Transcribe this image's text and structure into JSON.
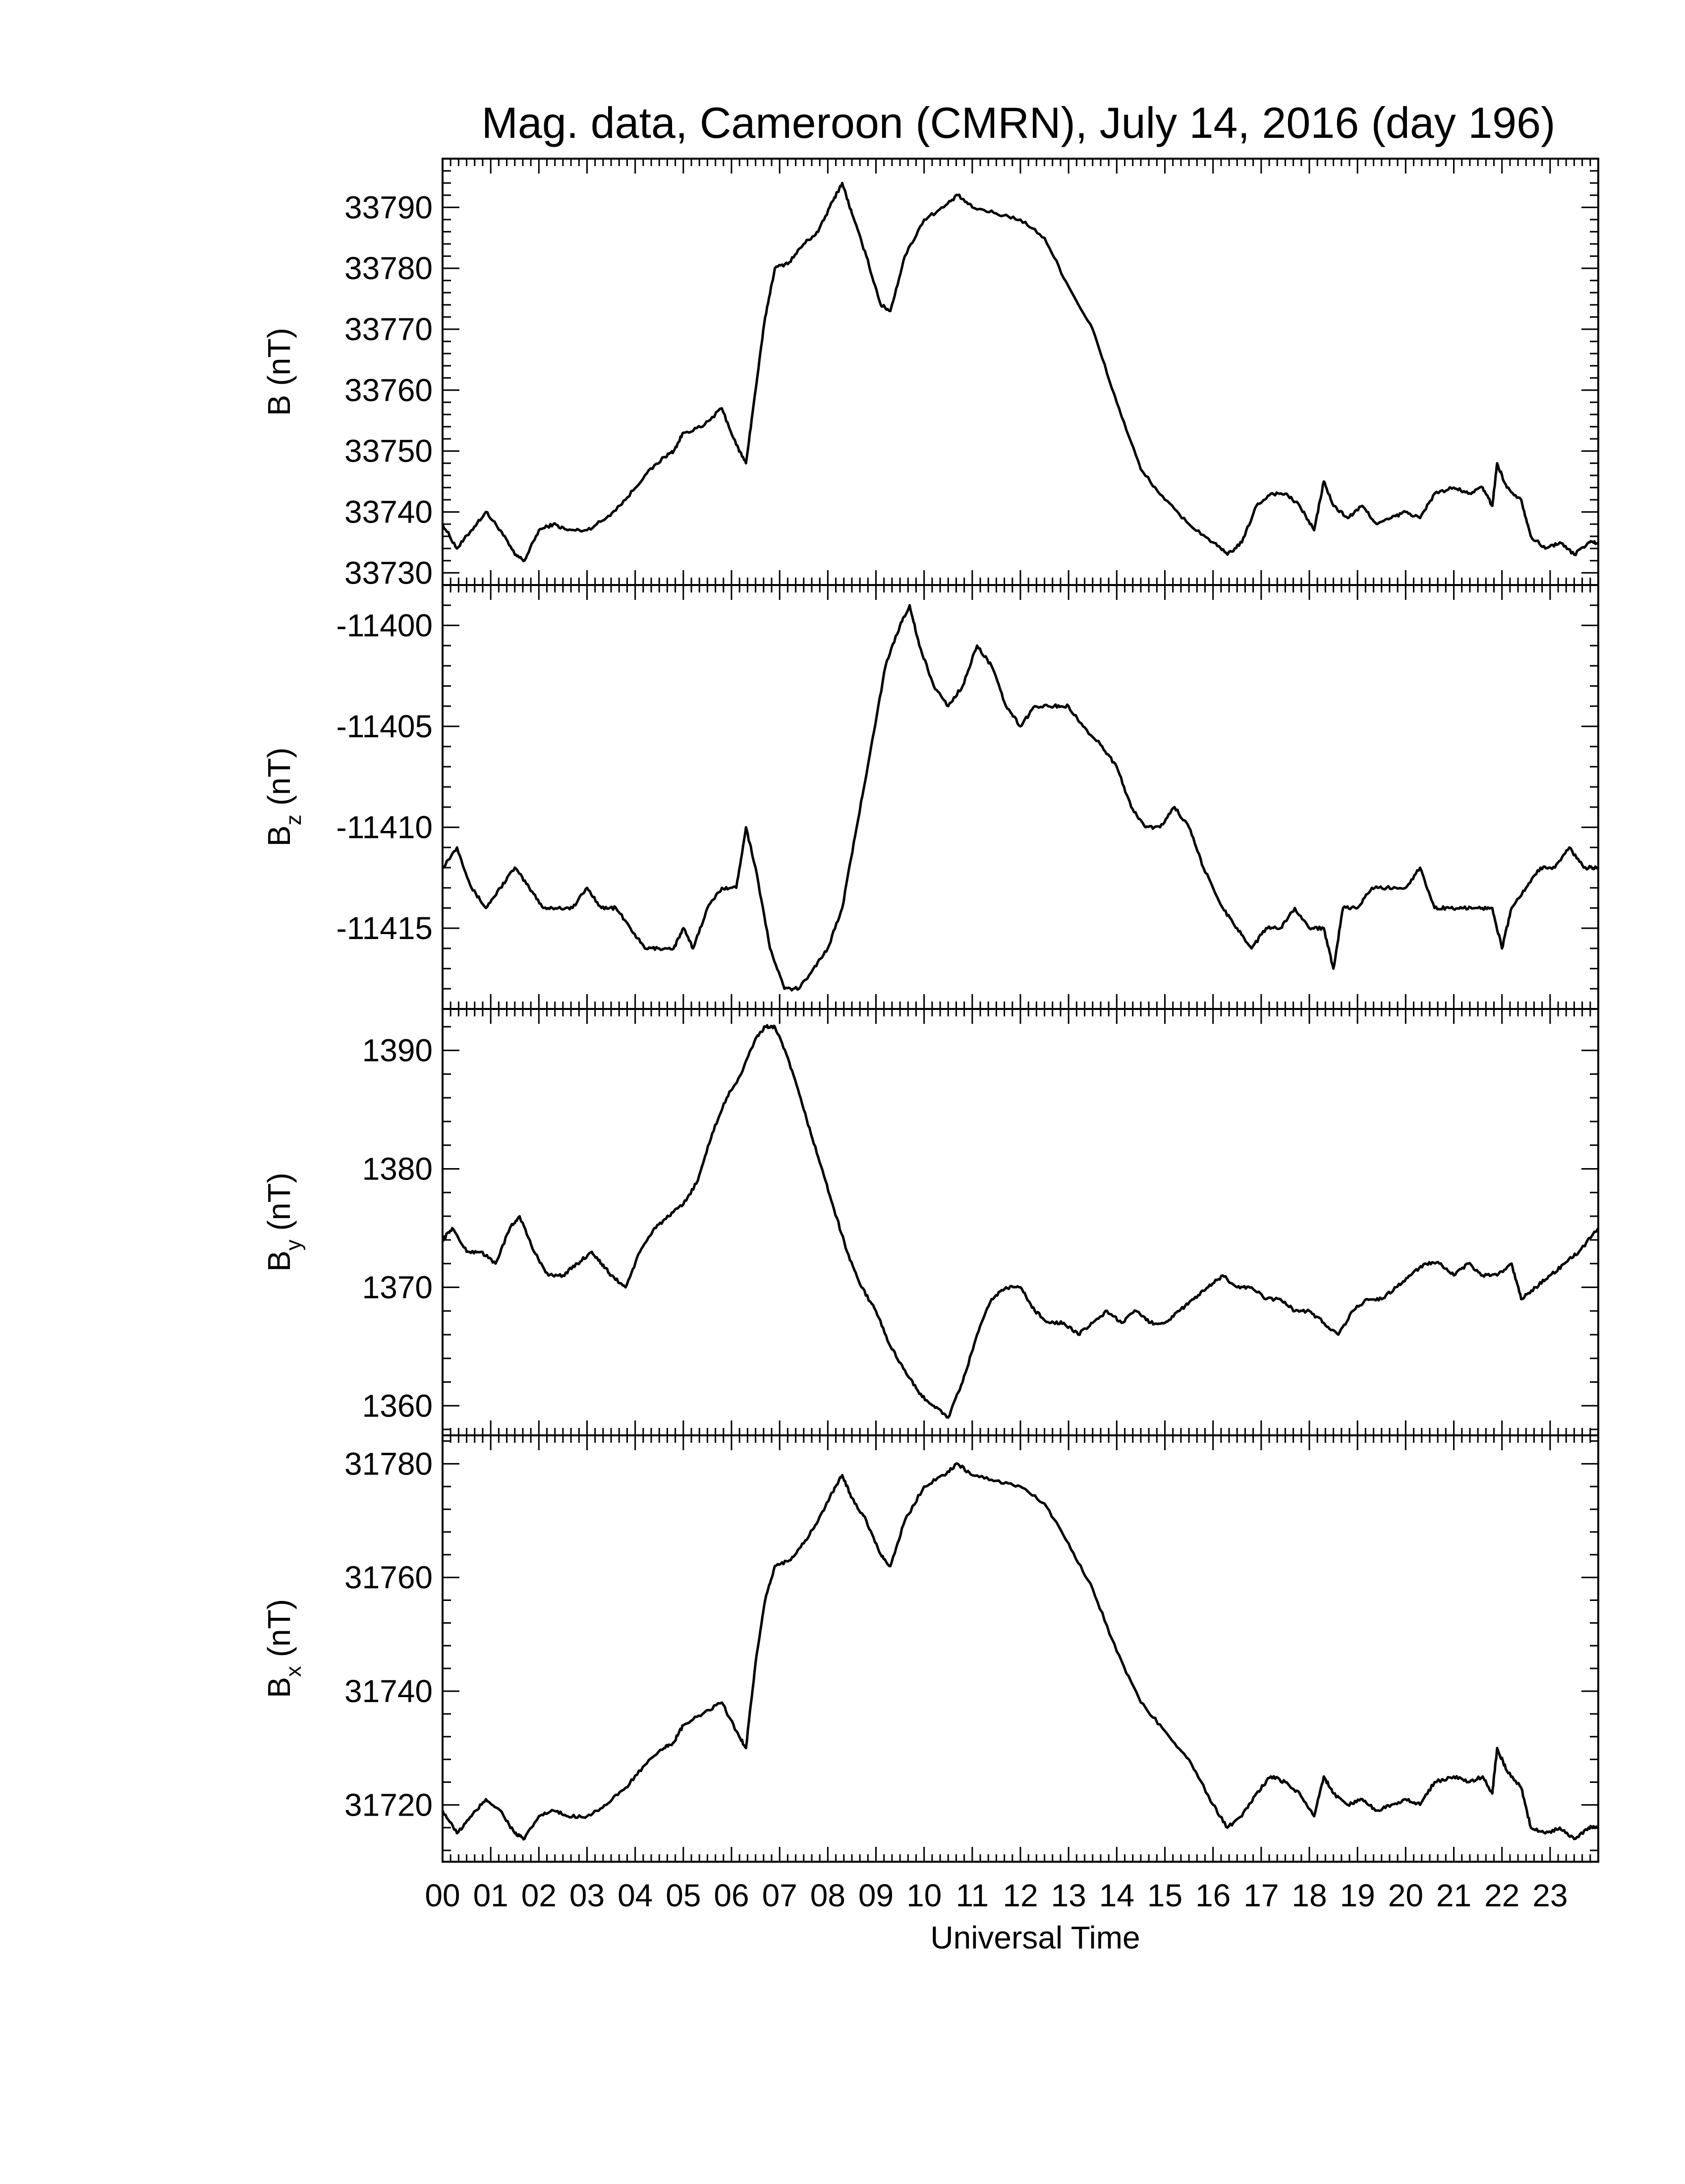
{
  "title": "Mag. data, Cameroon (CMRN), July 14, 2016 (day 196)",
  "colors": {
    "line": "#000000",
    "background": "#ffffff"
  },
  "chart_data": {
    "type": "line",
    "x_axis": {
      "label": "Universal Time",
      "unit": "hour",
      "range": [
        0,
        24
      ],
      "tick_labels": [
        "00",
        "01",
        "02",
        "03",
        "04",
        "05",
        "06",
        "07",
        "08",
        "09",
        "10",
        "11",
        "12",
        "13",
        "14",
        "15",
        "16",
        "17",
        "18",
        "19",
        "20",
        "21",
        "22",
        "23"
      ]
    },
    "panels": [
      {
        "ylabel": {
          "main": "B",
          "sub": "",
          "unit": "(nT)"
        },
        "ylim": [
          33728,
          33798
        ],
        "yticks": [
          33730,
          33740,
          33750,
          33760,
          33770,
          33780,
          33790
        ],
        "x": [
          0,
          0.3,
          0.6,
          0.9,
          1.2,
          1.5,
          1.7,
          2.0,
          2.3,
          2.6,
          3.0,
          3.4,
          3.8,
          4.2,
          4.6,
          4.8,
          5.0,
          5.4,
          5.8,
          6.1,
          6.3,
          6.5,
          6.7,
          6.9,
          7.2,
          7.5,
          7.8,
          8.1,
          8.3,
          8.5,
          8.8,
          9.1,
          9.3,
          9.6,
          10.0,
          10.4,
          10.7,
          11.0,
          11.5,
          12.0,
          12.5,
          13.0,
          13.5,
          14.0,
          14.5,
          15.0,
          15.5,
          16.0,
          16.3,
          16.6,
          16.9,
          17.2,
          17.5,
          17.8,
          18.1,
          18.3,
          18.5,
          18.8,
          19.1,
          19.4,
          19.7,
          20.0,
          20.3,
          20.6,
          21.0,
          21.3,
          21.6,
          21.8,
          21.9,
          22.1,
          22.4,
          22.6,
          22.9,
          23.2,
          23.5,
          23.8,
          24.0
        ],
        "values": [
          33738,
          33734,
          33737,
          33740,
          33737,
          33733,
          33732,
          33737,
          33738,
          33737,
          33737,
          33739,
          33742,
          33746,
          33749,
          33750,
          33753,
          33754,
          33757,
          33751,
          33748,
          33760,
          33772,
          33780,
          33781,
          33784,
          33786,
          33791,
          33794,
          33789,
          33782,
          33774,
          33773,
          33782,
          33788,
          33790,
          33792,
          33790,
          33789,
          33788,
          33785,
          33777,
          33770,
          33758,
          33747,
          33742,
          33738,
          33735,
          33733,
          33735,
          33741,
          33743,
          33743,
          33741,
          33737,
          33745,
          33741,
          33739,
          33741,
          33738,
          33739,
          33740,
          33739,
          33743,
          33744,
          33743,
          33744,
          33741,
          33748,
          33744,
          33742,
          33736,
          33734,
          33735,
          33733,
          33735,
          33735
        ]
      },
      {
        "ylabel": {
          "main": "B",
          "sub": "z",
          "unit": "(nT)"
        },
        "ylim": [
          -11419,
          -11398
        ],
        "yticks": [
          -11400,
          -11405,
          -11410,
          -11415
        ],
        "x": [
          0,
          0.3,
          0.6,
          0.9,
          1.2,
          1.5,
          1.8,
          2.1,
          2.4,
          2.7,
          3.0,
          3.3,
          3.6,
          3.9,
          4.2,
          4.5,
          4.8,
          5.0,
          5.2,
          5.5,
          5.8,
          6.1,
          6.3,
          6.5,
          6.8,
          7.1,
          7.4,
          7.7,
          8.0,
          8.3,
          8.6,
          8.9,
          9.2,
          9.5,
          9.7,
          9.9,
          10.2,
          10.5,
          10.8,
          11.1,
          11.4,
          11.7,
          12.0,
          12.3,
          12.7,
          13.0,
          13.3,
          13.7,
          14.0,
          14.3,
          14.6,
          14.9,
          15.2,
          15.5,
          15.8,
          16.2,
          16.5,
          16.8,
          17.1,
          17.4,
          17.7,
          18.0,
          18.3,
          18.5,
          18.7,
          19.0,
          19.3,
          19.6,
          20.0,
          20.3,
          20.6,
          20.9,
          21.2,
          21.5,
          21.8,
          22.0,
          22.2,
          22.5,
          22.8,
          23.1,
          23.4,
          23.7,
          24.0
        ],
        "values": [
          -11412,
          -11411,
          -11413,
          -11414,
          -11413,
          -11412,
          -11413,
          -11414,
          -11414,
          -11414,
          -11413,
          -11414,
          -11414,
          -11415,
          -11416,
          -11416,
          -11416,
          -11415,
          -11416,
          -11414,
          -11413,
          -11413,
          -11410,
          -11412,
          -11416,
          -11418,
          -11418,
          -11417,
          -11416,
          -11414,
          -11410,
          -11406,
          -11402,
          -11400,
          -11399,
          -11401,
          -11403,
          -11404,
          -11403,
          -11401,
          -11402,
          -11404,
          -11405,
          -11404,
          -11404,
          -11404,
          -11405,
          -11406,
          -11407,
          -11409,
          -11410,
          -11410,
          -11409,
          -11410,
          -11412,
          -11414,
          -11415,
          -11416,
          -11415,
          -11415,
          -11414,
          -11415,
          -11415,
          -11417,
          -11414,
          -11414,
          -11413,
          -11413,
          -11413,
          -11412,
          -11414,
          -11414,
          -11414,
          -11414,
          -11414,
          -11416,
          -11414,
          -11413,
          -11412,
          -11412,
          -11411,
          -11412,
          -11412
        ]
      },
      {
        "ylabel": {
          "main": "B",
          "sub": "y",
          "unit": "(nT)"
        },
        "ylim": [
          1357.5,
          1393.5
        ],
        "yticks": [
          1360,
          1370,
          1380,
          1390
        ],
        "x": [
          0,
          0.2,
          0.5,
          0.8,
          1.1,
          1.4,
          1.6,
          1.9,
          2.2,
          2.5,
          2.8,
          3.1,
          3.3,
          3.5,
          3.8,
          4.1,
          4.4,
          4.7,
          5.0,
          5.3,
          5.6,
          5.9,
          6.2,
          6.5,
          6.7,
          6.9,
          7.2,
          7.5,
          7.8,
          8.1,
          8.4,
          8.7,
          9.0,
          9.3,
          9.6,
          9.9,
          10.2,
          10.5,
          10.8,
          11.1,
          11.4,
          11.7,
          12.0,
          12.3,
          12.6,
          12.9,
          13.2,
          13.5,
          13.8,
          14.1,
          14.4,
          14.7,
          15.0,
          15.3,
          15.6,
          15.9,
          16.2,
          16.5,
          16.8,
          17.1,
          17.4,
          17.7,
          18.0,
          18.3,
          18.6,
          18.9,
          19.2,
          19.5,
          19.8,
          20.1,
          20.4,
          20.7,
          21.0,
          21.3,
          21.6,
          21.9,
          22.2,
          22.4,
          22.7,
          23.0,
          23.3,
          23.6,
          24.0
        ],
        "values": [
          1374,
          1375,
          1373,
          1373,
          1372,
          1375,
          1376,
          1373,
          1371,
          1371,
          1372,
          1373,
          1372,
          1371,
          1370,
          1373,
          1375,
          1376,
          1377,
          1379,
          1383,
          1386,
          1388,
          1391,
          1392,
          1392,
          1389,
          1385,
          1381,
          1377,
          1373,
          1370,
          1368,
          1365,
          1363,
          1361,
          1360,
          1359,
          1362,
          1366,
          1369,
          1370,
          1370,
          1368,
          1367,
          1367,
          1366,
          1367,
          1368,
          1367,
          1368,
          1367,
          1367,
          1368,
          1369,
          1370,
          1371,
          1370,
          1370,
          1369,
          1369,
          1368,
          1368,
          1367,
          1366,
          1368,
          1369,
          1369,
          1370,
          1371,
          1372,
          1372,
          1371,
          1372,
          1371,
          1371,
          1372,
          1369,
          1370,
          1371,
          1372,
          1373,
          1375
        ]
      },
      {
        "ylabel": {
          "main": "B",
          "sub": "x",
          "unit": "(nT)"
        },
        "ylim": [
          31710,
          31785
        ],
        "yticks": [
          31720,
          31740,
          31760,
          31780
        ],
        "x": [
          0,
          0.3,
          0.6,
          0.9,
          1.2,
          1.5,
          1.7,
          2.0,
          2.3,
          2.6,
          3.0,
          3.4,
          3.8,
          4.2,
          4.6,
          4.8,
          5.0,
          5.4,
          5.8,
          6.1,
          6.3,
          6.5,
          6.7,
          6.9,
          7.2,
          7.5,
          7.8,
          8.1,
          8.3,
          8.5,
          8.8,
          9.1,
          9.3,
          9.6,
          10.0,
          10.4,
          10.7,
          11.0,
          11.5,
          12.0,
          12.5,
          13.0,
          13.5,
          14.0,
          14.5,
          15.0,
          15.5,
          16.0,
          16.3,
          16.6,
          16.9,
          17.2,
          17.5,
          17.8,
          18.1,
          18.3,
          18.5,
          18.8,
          19.1,
          19.4,
          19.7,
          20.0,
          20.3,
          20.6,
          21.0,
          21.3,
          21.6,
          21.8,
          21.9,
          22.1,
          22.4,
          22.6,
          22.9,
          23.2,
          23.5,
          23.8,
          24.0
        ],
        "values": [
          31719,
          31715,
          31718,
          31721,
          31719,
          31715,
          31714,
          31718,
          31719,
          31718,
          31718,
          31720,
          31723,
          31727,
          31730,
          31731,
          31734,
          31736,
          31738,
          31733,
          31730,
          31745,
          31756,
          31762,
          31763,
          31766,
          31770,
          31775,
          31778,
          31774,
          31770,
          31764,
          31762,
          31770,
          31776,
          31778,
          31780,
          31778,
          31777,
          31776,
          31773,
          31766,
          31758,
          31747,
          31738,
          31733,
          31728,
          31720,
          31716,
          31718,
          31722,
          31725,
          31724,
          31722,
          31718,
          31725,
          31722,
          31720,
          31721,
          31719,
          31720,
          31721,
          31720,
          31724,
          31725,
          31724,
          31725,
          31722,
          31730,
          31726,
          31723,
          31716,
          31715,
          31716,
          31714,
          31716,
          31716
        ]
      }
    ]
  }
}
